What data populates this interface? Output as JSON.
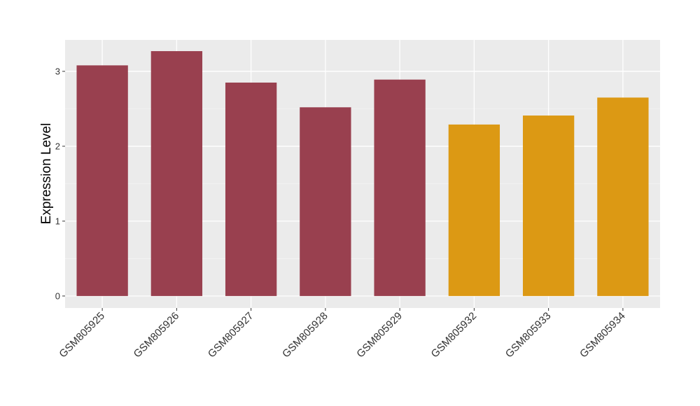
{
  "chart_data": {
    "type": "bar",
    "y_label": "Expression Level",
    "categories": [
      "GSM805925",
      "GSM805926",
      "GSM805927",
      "GSM805928",
      "GSM805929",
      "GSM805932",
      "GSM805933",
      "GSM805934"
    ],
    "values": [
      3.08,
      3.27,
      2.85,
      2.52,
      2.89,
      2.29,
      2.41,
      2.65
    ],
    "colors": [
      "#99404f",
      "#99404f",
      "#99404f",
      "#99404f",
      "#99404f",
      "#dc9914",
      "#dc9914",
      "#dc9914"
    ],
    "ylim": [
      -0.16,
      3.42
    ],
    "yticks": [
      0,
      1,
      2,
      3
    ],
    "y_minor_ticks": [
      0.5,
      1.5,
      2.5
    ],
    "grid": true
  }
}
